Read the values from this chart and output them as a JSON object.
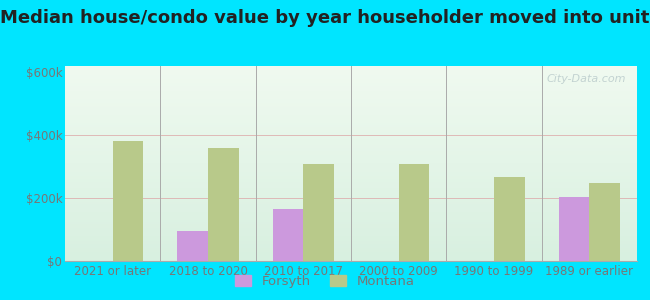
{
  "title": "Median house/condo value by year householder moved into unit",
  "categories": [
    "2021 or later",
    "2018 to 2020",
    "2010 to 2017",
    "2000 to 2009",
    "1990 to 1999",
    "1989 or earlier"
  ],
  "forsyth_values": [
    null,
    95000,
    165000,
    null,
    null,
    205000
  ],
  "montana_values": [
    382000,
    360000,
    307000,
    307000,
    268000,
    248000
  ],
  "forsyth_color": "#cc99dd",
  "montana_color": "#b8c98a",
  "background_color": "#00e5ff",
  "ylabel_ticks": [
    "$0",
    "$200k",
    "$400k",
    "$600k"
  ],
  "ytick_values": [
    0,
    200000,
    400000,
    600000
  ],
  "ylim": [
    0,
    620000
  ],
  "bar_width": 0.32,
  "legend_forsyth": "Forsyth",
  "legend_montana": "Montana",
  "watermark": "City-Data.com",
  "title_fontsize": 13,
  "tick_fontsize": 8.5,
  "legend_fontsize": 9.5,
  "tick_color": "#777777",
  "title_color": "#222222"
}
